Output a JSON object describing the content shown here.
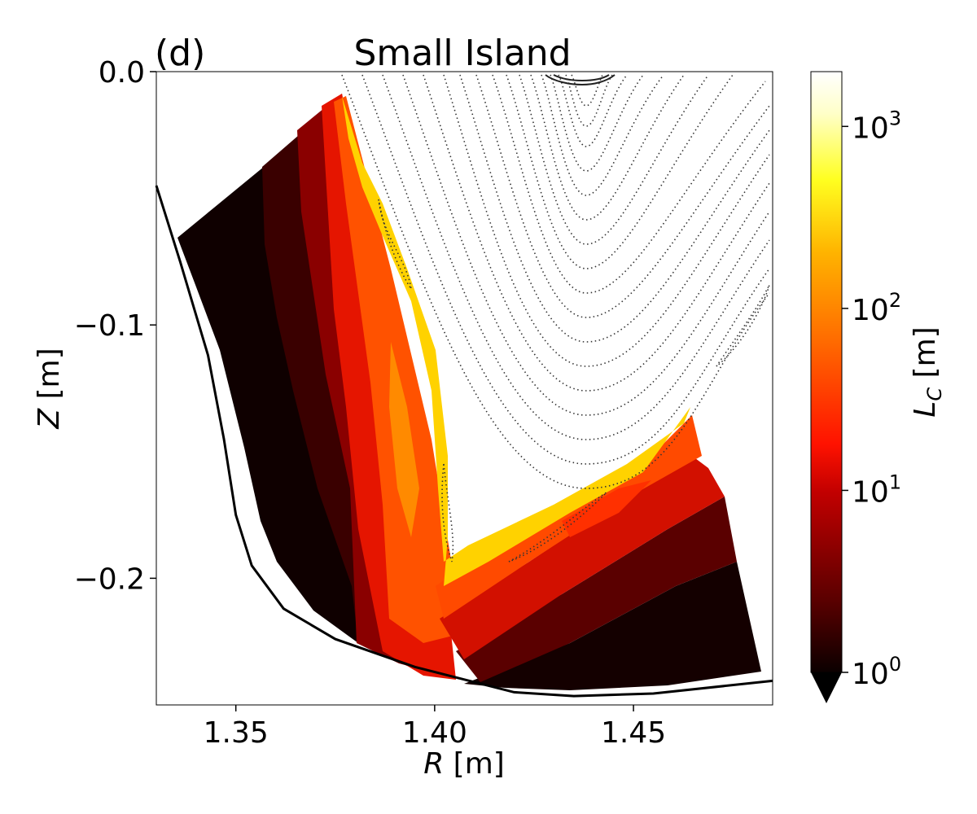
{
  "panel_label": "(d)",
  "title": "Small Island",
  "xlabel": "R [m]",
  "ylabel": "Z [m]",
  "colorbar_label": "L_C [m]",
  "colormap": "hot",
  "chart_data": {
    "type": "heatmap",
    "title": "Small Island",
    "xlabel": "R [m]",
    "ylabel": "Z [m]",
    "xlim": [
      1.33,
      1.485
    ],
    "ylim": [
      -0.25,
      0.0
    ],
    "x_ticks": [
      1.35,
      1.4,
      1.45
    ],
    "x_tick_labels": [
      "1.35",
      "1.40",
      "1.45"
    ],
    "y_ticks": [
      0.0,
      -0.1,
      -0.2
    ],
    "y_tick_labels": [
      "0.0",
      "−0.1",
      "−0.2"
    ],
    "colorbar": {
      "label": "L_C [m]",
      "scale": "log",
      "range": [
        1,
        2000
      ],
      "ticks": [
        1,
        10,
        100,
        1000
      ],
      "tick_labels": [
        "10^0",
        "10^1",
        "10^2",
        "10^3"
      ],
      "extend": "min"
    },
    "wall_boundary": [
      [
        1.33,
        -0.045
      ],
      [
        1.336,
        -0.075
      ],
      [
        1.343,
        -0.112
      ],
      [
        1.347,
        -0.145
      ],
      [
        1.35,
        -0.175
      ],
      [
        1.354,
        -0.195
      ],
      [
        1.362,
        -0.212
      ],
      [
        1.375,
        -0.224
      ],
      [
        1.395,
        -0.235
      ],
      [
        1.42,
        -0.245
      ],
      [
        1.435,
        -0.2465
      ],
      [
        1.455,
        -0.2455
      ],
      [
        1.485,
        -0.2405
      ]
    ]
  }
}
